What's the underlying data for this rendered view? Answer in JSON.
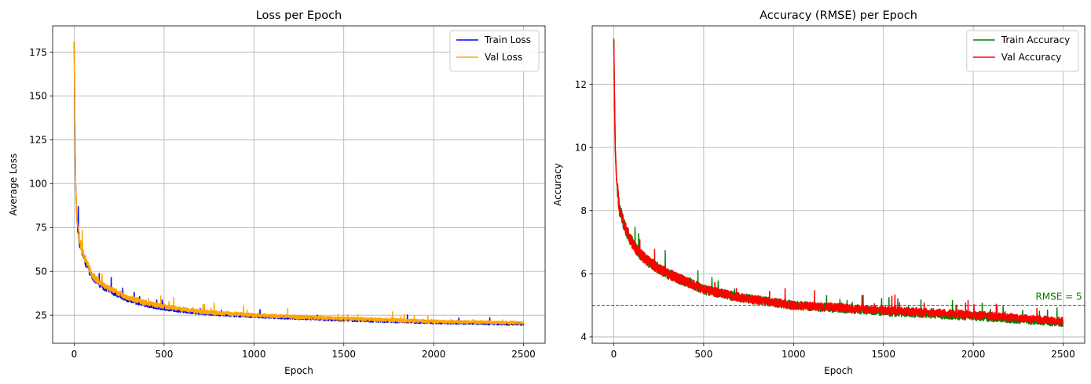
{
  "chart_data": [
    {
      "type": "line",
      "title": "Loss per Epoch",
      "xlabel": "Epoch",
      "ylabel": "Average Loss",
      "xlim": [
        -120,
        2620
      ],
      "ylim": [
        9,
        190
      ],
      "xticks": [
        0,
        500,
        1000,
        1500,
        2000,
        2500
      ],
      "yticks": [
        25,
        50,
        75,
        100,
        125,
        150,
        175
      ],
      "grid": true,
      "legend_position": "top-right",
      "series": [
        {
          "name": "Train Loss",
          "color": "#0000ff",
          "anchors": [
            [
              0,
              181
            ],
            [
              3,
              140
            ],
            [
              8,
              100
            ],
            [
              15,
              80
            ],
            [
              30,
              66
            ],
            [
              60,
              56
            ],
            [
              100,
              47
            ],
            [
              150,
              42
            ],
            [
              200,
              39
            ],
            [
              300,
              34
            ],
            [
              400,
              31
            ],
            [
              500,
              29
            ],
            [
              700,
              26.5
            ],
            [
              1000,
              24.5
            ],
            [
              1500,
              22.5
            ],
            [
              2000,
              21
            ],
            [
              2500,
              20
            ]
          ]
        },
        {
          "name": "Val Loss",
          "color": "#ffa500",
          "anchors": [
            [
              0,
              181
            ],
            [
              3,
              145
            ],
            [
              8,
              100
            ],
            [
              15,
              80
            ],
            [
              30,
              67
            ],
            [
              60,
              57
            ],
            [
              100,
              48
            ],
            [
              150,
              43
            ],
            [
              200,
              40
            ],
            [
              300,
              35
            ],
            [
              400,
              32
            ],
            [
              500,
              30
            ],
            [
              700,
              27
            ],
            [
              1000,
              25
            ],
            [
              1500,
              23
            ],
            [
              2000,
              21.5
            ],
            [
              2500,
              20.5
            ]
          ]
        }
      ]
    },
    {
      "type": "line",
      "title": "Accuracy (RMSE) per Epoch",
      "xlabel": "Epoch",
      "ylabel": "Accuracy",
      "xlim": [
        -120,
        2620
      ],
      "ylim": [
        3.8,
        13.85
      ],
      "xticks": [
        0,
        500,
        1000,
        1500,
        2000,
        2500
      ],
      "yticks": [
        4,
        6,
        8,
        10,
        12
      ],
      "grid": true,
      "legend_position": "top-right",
      "series": [
        {
          "name": "Train Accuracy",
          "color": "#008000",
          "anchors": [
            [
              0,
              13.4
            ],
            [
              3,
              12.0
            ],
            [
              8,
              10.0
            ],
            [
              15,
              9.0
            ],
            [
              30,
              8.1
            ],
            [
              60,
              7.5
            ],
            [
              100,
              7.0
            ],
            [
              150,
              6.6
            ],
            [
              200,
              6.35
            ],
            [
              300,
              6.0
            ],
            [
              400,
              5.75
            ],
            [
              500,
              5.5
            ],
            [
              700,
              5.25
            ],
            [
              1000,
              5.0
            ],
            [
              1500,
              4.8
            ],
            [
              2000,
              4.65
            ],
            [
              2500,
              4.45
            ]
          ]
        },
        {
          "name": "Val Accuracy",
          "color": "#ff0000",
          "anchors": [
            [
              0,
              13.45
            ],
            [
              3,
              12.0
            ],
            [
              8,
              10.0
            ],
            [
              15,
              9.0
            ],
            [
              30,
              8.1
            ],
            [
              60,
              7.5
            ],
            [
              100,
              7.0
            ],
            [
              150,
              6.6
            ],
            [
              200,
              6.35
            ],
            [
              300,
              6.0
            ],
            [
              400,
              5.75
            ],
            [
              500,
              5.5
            ],
            [
              700,
              5.25
            ],
            [
              1000,
              5.0
            ],
            [
              1500,
              4.85
            ],
            [
              2000,
              4.7
            ],
            [
              2500,
              4.5
            ]
          ]
        }
      ],
      "reference_line": {
        "y": 5,
        "label": "RMSE = 5",
        "color": "#008000",
        "style": "dashed"
      }
    }
  ]
}
